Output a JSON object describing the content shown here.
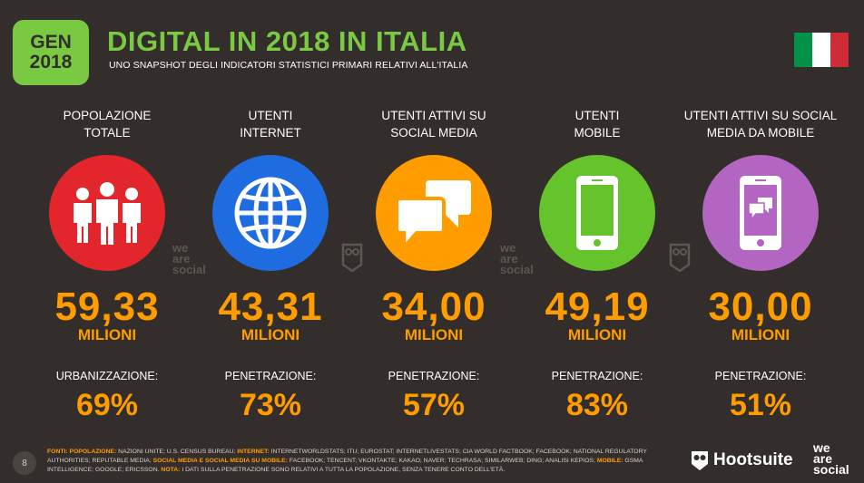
{
  "header": {
    "badge_line1": "GEN",
    "badge_line2": "2018",
    "title": "DIGITAL IN 2018 IN ITALIA",
    "subtitle": "UNO SNAPSHOT DEGLI INDICATORI STATISTICI PRIMARI RELATIVI ALL'ITALIA"
  },
  "flag_colors": [
    "#009246",
    "#ffffff",
    "#ce2b37"
  ],
  "accent": "#ff9c00",
  "stats": [
    {
      "label1": "POPOLAZIONE",
      "label2": "TOTALE",
      "icon": "people-icon",
      "circle_color": "#e2262b",
      "value": "59,33",
      "unit": "MILIONI",
      "sub_label": "URBANIZZAZIONE:",
      "sub_value": "69%"
    },
    {
      "label1": "UTENTI",
      "label2": "INTERNET",
      "icon": "globe-icon",
      "circle_color": "#1f6ce0",
      "value": "43,31",
      "unit": "MILIONI",
      "sub_label": "PENETRAZIONE:",
      "sub_value": "73%"
    },
    {
      "label1": "UTENTI ATTIVI SU",
      "label2": "SOCIAL MEDIA",
      "icon": "chat-bubbles-icon",
      "circle_color": "#ff9c00",
      "value": "34,00",
      "unit": "MILIONI",
      "sub_label": "PENETRAZIONE:",
      "sub_value": "57%"
    },
    {
      "label1": "UTENTI",
      "label2": "MOBILE",
      "icon": "mobile-phone-icon",
      "circle_color": "#65c42c",
      "value": "49,19",
      "unit": "MILIONI",
      "sub_label": "PENETRAZIONE:",
      "sub_value": "83%"
    },
    {
      "label1": "UTENTI ATTIVI SU SOCIAL",
      "label2": "MEDIA DA MOBILE",
      "icon": "mobile-social-icon",
      "circle_color": "#b365c2",
      "value": "30,00",
      "unit": "MILIONI",
      "sub_label": "PENETRAZIONE:",
      "sub_value": "51%"
    }
  ],
  "footer": {
    "page_number": "8",
    "sources": {
      "fonti": "FONTI:",
      "pop_label": "POPOLAZIONE:",
      "pop_text": "NAZIONI UNITE; U.S. CENSUS BUREAU;",
      "internet_label": "INTERNET:",
      "internet_text": "INTERNETWORLDSTATS; ITU; EUROSTAT; INTERNETLIVESTATS; CIA WORLD FACTBOOK; FACEBOOK; NATIONAL REGULATORY AUTHORITIES; REPUTABLE MEDIA;",
      "social_label": "SOCIAL MEDIA E SOCIAL MEDIA SU MOBILE:",
      "social_text": "FACEBOOK; TENCENT; VKONTAKTE; KAKAO; NAVER; TECHRASA; SIMILARWEB; DING; ANALISI KEPIOS;",
      "mobile_label": "MOBILE:",
      "mobile_text": "GSMA INTELLIGENCE; GOOGLE; ERICSSON.",
      "nota_label": "NOTA:",
      "nota_text": "I DATI SULLA PENETRAZIONE SONO RELATIVI A TUTTA LA POPOLAZIONE, SENZA TENERE CONTO DELL'ETÀ."
    },
    "hootsuite": "Hootsuite",
    "we_are_social": [
      "we",
      "are",
      "social"
    ]
  }
}
